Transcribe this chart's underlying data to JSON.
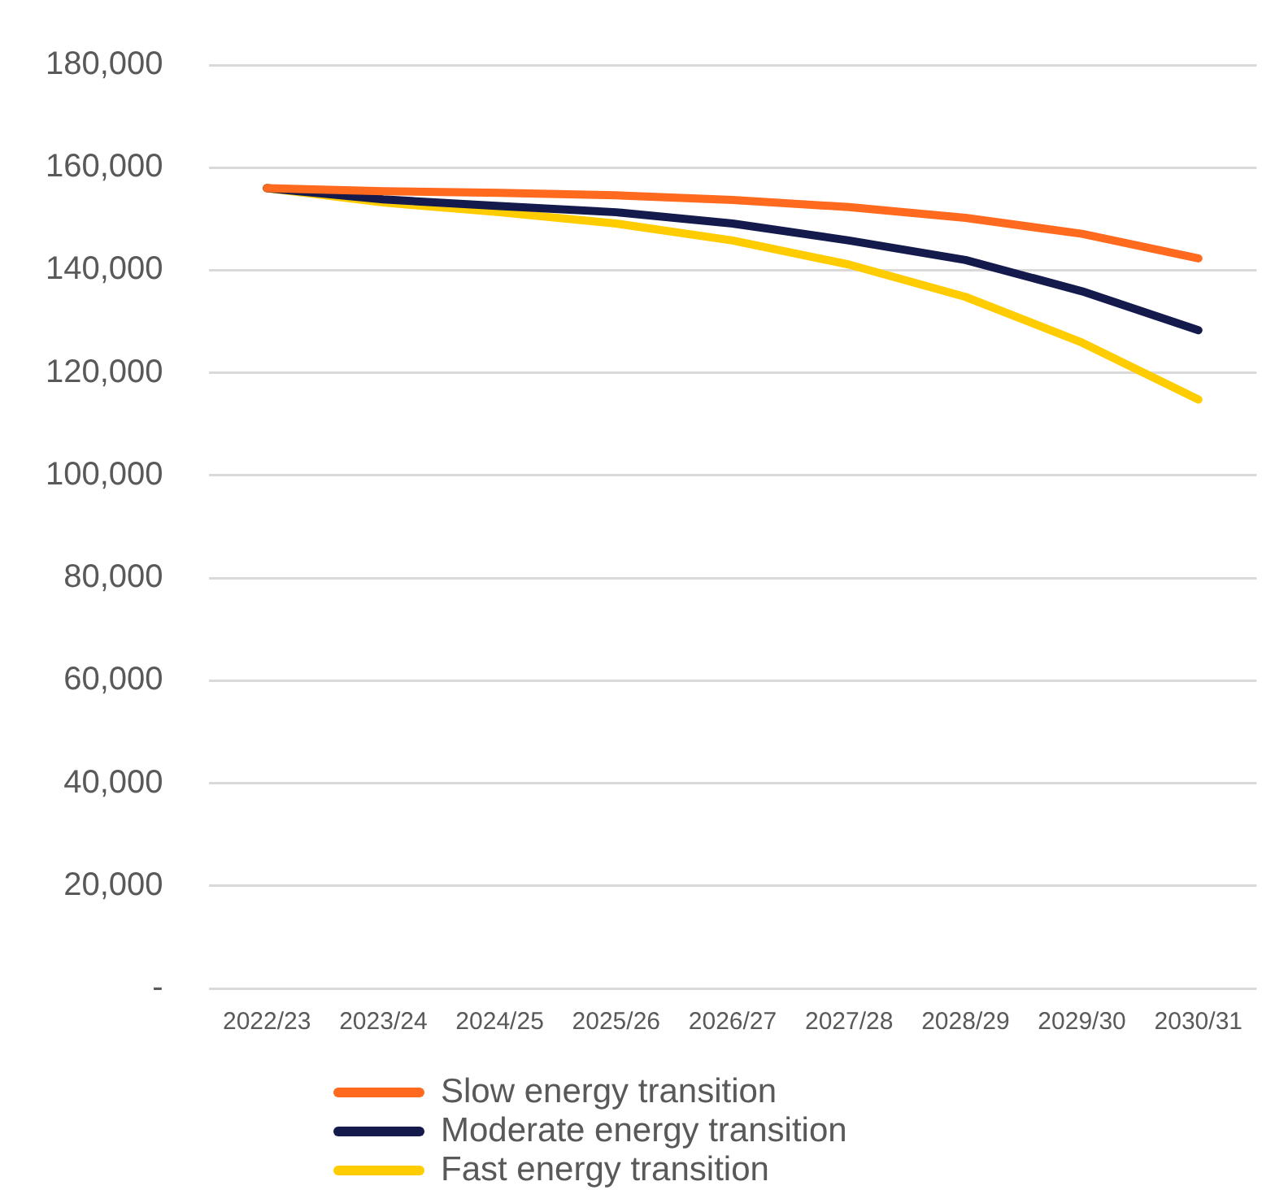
{
  "chart_data": {
    "type": "line",
    "categories": [
      "2022/23",
      "2023/24",
      "2024/25",
      "2025/26",
      "2026/27",
      "2027/28",
      "2028/29",
      "2029/30",
      "2030/31"
    ],
    "series": [
      {
        "name": "Slow energy transition",
        "color": "#ff6a1f",
        "values": [
          156000,
          155400,
          155100,
          154600,
          153700,
          152300,
          150200,
          147100,
          142300
        ]
      },
      {
        "name": "Moderate energy transition",
        "color": "#141a4b",
        "values": [
          156000,
          153800,
          152500,
          151300,
          149100,
          145800,
          142000,
          135900,
          128300
        ]
      },
      {
        "name": "Fast energy transition",
        "color": "#ffcc00",
        "values": [
          156000,
          153200,
          151300,
          149100,
          145800,
          141100,
          134800,
          125900,
          114800
        ]
      }
    ],
    "ylim": [
      0,
      180000
    ],
    "yticks": [
      {
        "value": 0,
        "label": "-"
      },
      {
        "value": 20000,
        "label": "20,000"
      },
      {
        "value": 40000,
        "label": "40,000"
      },
      {
        "value": 60000,
        "label": "60,000"
      },
      {
        "value": 80000,
        "label": "80,000"
      },
      {
        "value": 100000,
        "label": "100,000"
      },
      {
        "value": 120000,
        "label": "120,000"
      },
      {
        "value": 140000,
        "label": "140,000"
      },
      {
        "value": 160000,
        "label": "160,000"
      },
      {
        "value": 180000,
        "label": "180,000"
      }
    ],
    "grid": "y",
    "legend": "bottom",
    "marker": "none",
    "line_style": "solid"
  }
}
